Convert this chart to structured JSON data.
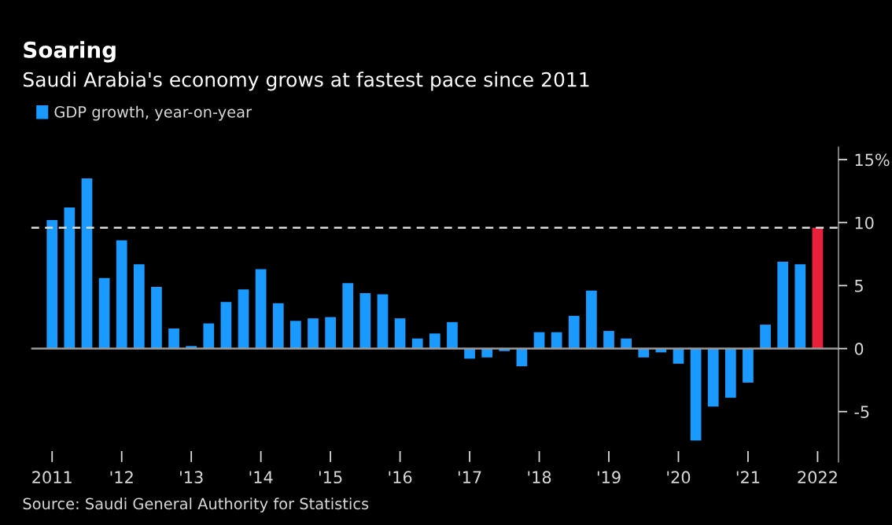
{
  "chart_data": {
    "type": "bar",
    "title": "Soaring",
    "subtitle": "Saudi Arabia's economy grows at fastest pace since 2011",
    "categories": [
      "2011",
      null,
      null,
      null,
      "'12",
      null,
      null,
      null,
      "'13",
      null,
      null,
      null,
      "'14",
      null,
      null,
      null,
      "'15",
      null,
      null,
      null,
      "'16",
      null,
      null,
      null,
      "'17",
      null,
      null,
      null,
      "'18",
      null,
      null,
      null,
      "'19",
      null,
      null,
      null,
      "'20",
      null,
      null,
      null,
      "'21",
      null,
      null,
      null,
      "2022"
    ],
    "series": [
      {
        "name": "GDP growth, year-on-year",
        "color": "#1a9aff",
        "colors": [
          "#1a9aff",
          "#1a9aff",
          "#1a9aff",
          "#1a9aff",
          "#1a9aff",
          "#1a9aff",
          "#1a9aff",
          "#1a9aff",
          "#1a9aff",
          "#1a9aff",
          "#1a9aff",
          "#1a9aff",
          "#1a9aff",
          "#1a9aff",
          "#1a9aff",
          "#1a9aff",
          "#1a9aff",
          "#1a9aff",
          "#1a9aff",
          "#1a9aff",
          "#1a9aff",
          "#1a9aff",
          "#1a9aff",
          "#1a9aff",
          "#1a9aff",
          "#1a9aff",
          "#1a9aff",
          "#1a9aff",
          "#1a9aff",
          "#1a9aff",
          "#1a9aff",
          "#1a9aff",
          "#1a9aff",
          "#1a9aff",
          "#1a9aff",
          "#1a9aff",
          "#1a9aff",
          "#1a9aff",
          "#1a9aff",
          "#1a9aff",
          "#1a9aff",
          "#1a9aff",
          "#1a9aff",
          "#1a9aff",
          "#e8203a"
        ],
        "values": [
          10.2,
          11.2,
          13.5,
          5.6,
          8.6,
          6.7,
          4.9,
          1.6,
          0.2,
          2.0,
          3.7,
          4.7,
          6.3,
          3.6,
          2.2,
          2.4,
          2.5,
          5.2,
          4.4,
          4.3,
          2.4,
          0.8,
          1.2,
          2.1,
          -0.8,
          -0.7,
          -0.2,
          -1.4,
          1.3,
          1.3,
          2.6,
          4.6,
          1.4,
          0.8,
          -0.7,
          -0.3,
          -1.2,
          -7.3,
          -4.6,
          -3.9,
          -2.7,
          1.9,
          6.9,
          6.7,
          9.6
        ]
      }
    ],
    "ylim": [
      -9,
      16
    ],
    "yticks": [
      -5,
      0,
      5,
      10,
      {
        "value": 15,
        "label": "15%"
      }
    ],
    "ref_lines": [
      {
        "axis": "y",
        "value": 9.6,
        "color": "#dddddd",
        "line_style": "dashed"
      },
      {
        "axis": "y",
        "value": 0,
        "color": "#9a9a9a",
        "line_style": "solid"
      }
    ],
    "annotations": [
      "Source: Saudi General Authority for Statistics"
    ],
    "legend": "top left",
    "grid": false
  }
}
